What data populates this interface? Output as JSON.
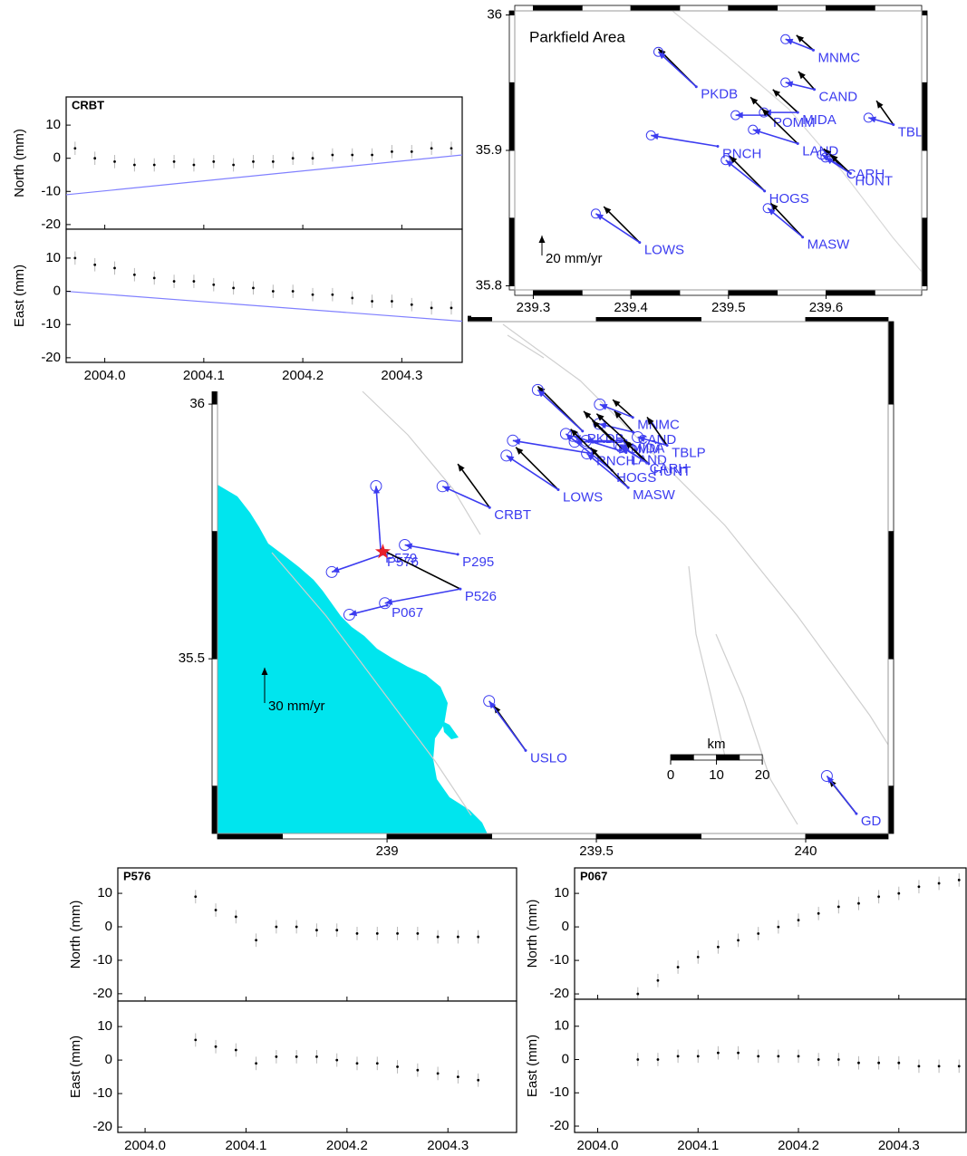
{
  "chart_data": [
    {
      "type": "map",
      "xlim": [
        238.595,
        240.197
      ],
      "ylim": [
        35.157,
        36.162
      ],
      "xticks": [
        239,
        239.5,
        240
      ],
      "yticks": [
        35.5,
        36
      ],
      "observed_color": "#000000",
      "model_color": "#3c3cf0",
      "stations": [
        {
          "name": "MNMC",
          "lon": 239.587,
          "lat": 35.974,
          "observed": [
            -17,
            15
          ],
          "model": [
            -28,
            11
          ]
        },
        {
          "name": "CAND",
          "lon": 239.588,
          "lat": 35.945,
          "observed": [
            -16,
            18
          ],
          "model": [
            -29,
            7
          ]
        },
        {
          "name": "PKDB",
          "lon": 239.467,
          "lat": 35.947,
          "observed": [
            -38,
            38
          ],
          "model": [
            -38,
            35
          ]
        },
        {
          "name": "POMM",
          "lon": 239.541,
          "lat": 35.926,
          "observed": [
            -18,
            18
          ],
          "model": [
            -33,
            0
          ]
        },
        {
          "name": "MIDA",
          "lon": 239.571,
          "lat": 35.928,
          "observed": [
            -25,
            23
          ],
          "model": [
            -34,
            0
          ]
        },
        {
          "name": "LAND",
          "lon": 239.571,
          "lat": 35.905,
          "observed": [
            -36,
            35
          ],
          "model": [
            -45,
            14
          ]
        },
        {
          "name": "RNCH",
          "lon": 239.489,
          "lat": 35.903,
          "model": [
            -67,
            11
          ]
        },
        {
          "name": "CARH",
          "lon": 239.616,
          "lat": 35.888,
          "observed": [
            -18,
            18
          ],
          "model": [
            -20,
            12
          ]
        },
        {
          "name": "HUNT",
          "lon": 239.625,
          "lat": 35.883,
          "observed": [
            -20,
            19
          ],
          "model": [
            -25,
            16
          ]
        },
        {
          "name": "HOGS",
          "lon": 239.537,
          "lat": 35.87,
          "observed": [
            -35,
            35
          ],
          "model": [
            -39,
            31
          ]
        },
        {
          "name": "MASW",
          "lon": 239.576,
          "lat": 35.836,
          "observed": [
            -32,
            34
          ],
          "model": [
            -35,
            29
          ]
        },
        {
          "name": "LOWS",
          "lon": 239.409,
          "lat": 35.832,
          "observed": [
            -36,
            36
          ],
          "model": [
            -44,
            29
          ]
        },
        {
          "name": "TBLP",
          "lon": 239.669,
          "lat": 35.919,
          "observed": [
            -17,
            24
          ],
          "model": [
            -25,
            7
          ]
        },
        {
          "name": "CRBT",
          "lon": 239.245,
          "lat": 35.797,
          "observed": [
            -27,
            37
          ],
          "model": [
            -40,
            18
          ]
        },
        {
          "name": "P295",
          "lon": 239.169,
          "lat": 35.705,
          "model": [
            -45,
            8
          ]
        },
        {
          "name": "P579",
          "lon": 238.985,
          "lat": 35.712,
          "model": [
            -4,
            55
          ]
        },
        {
          "name": "P576",
          "lon": 238.989,
          "lat": 35.705,
          "model": [
            -43,
            -15
          ]
        },
        {
          "name": "P526",
          "lon": 239.175,
          "lat": 35.637,
          "observed": [
            -68,
            34
          ],
          "model": [
            -64,
            -12
          ]
        },
        {
          "name": "P067",
          "lon": 239.0,
          "lat": 35.605,
          "model": [
            -32,
            -8
          ]
        },
        {
          "name": "USLO",
          "lon": 239.331,
          "lat": 35.32,
          "observed": [
            -27,
            38
          ],
          "model": [
            -31,
            42
          ]
        },
        {
          "name": "GD",
          "lon": 240.121,
          "lat": 35.196,
          "observed": [
            -23,
            29
          ],
          "model": [
            -25,
            32
          ]
        }
      ],
      "epicenter": {
        "lon": 238.99,
        "lat": 35.71,
        "color": "#e8202a"
      },
      "scale_arrow": {
        "value": 30,
        "label": "30 mm/yr"
      },
      "scale_bar": {
        "label": "km",
        "ticks": [
          0,
          10,
          20
        ]
      }
    },
    {
      "type": "map",
      "title": "Parkfield Area",
      "xlim": [
        239.281,
        239.698
      ],
      "ylim": [
        35.797,
        36.003
      ],
      "xticks": [
        239.3,
        239.4,
        239.5,
        239.6
      ],
      "yticks": [
        35.8,
        35.9,
        36
      ],
      "observed_color": "#000000",
      "model_color": "#3c3cf0",
      "stations": [
        {
          "name": "MNMC",
          "lon": 239.587,
          "lat": 35.974,
          "observed": [
            -17,
            15
          ],
          "model": [
            -28,
            11
          ]
        },
        {
          "name": "CAND",
          "lon": 239.588,
          "lat": 35.945,
          "observed": [
            -16,
            18
          ],
          "model": [
            -29,
            7
          ]
        },
        {
          "name": "PKDB",
          "lon": 239.467,
          "lat": 35.947,
          "observed": [
            -38,
            38
          ],
          "model": [
            -38,
            35
          ]
        },
        {
          "name": "POMM",
          "lon": 239.541,
          "lat": 35.926,
          "observed": [
            -18,
            18
          ],
          "model": [
            -33,
            0
          ]
        },
        {
          "name": "MIDA",
          "lon": 239.571,
          "lat": 35.928,
          "observed": [
            -25,
            23
          ],
          "model": [
            -34,
            0
          ]
        },
        {
          "name": "LAND",
          "lon": 239.571,
          "lat": 35.905,
          "observed": [
            -36,
            35
          ],
          "model": [
            -45,
            14
          ]
        },
        {
          "name": "RNCH",
          "lon": 239.489,
          "lat": 35.903,
          "model": [
            -67,
            11
          ]
        },
        {
          "name": "CARH",
          "lon": 239.616,
          "lat": 35.888,
          "observed": [
            -18,
            18
          ],
          "model": [
            -20,
            12
          ]
        },
        {
          "name": "HUNT",
          "lon": 239.625,
          "lat": 35.883,
          "observed": [
            -20,
            19
          ],
          "model": [
            -25,
            16
          ]
        },
        {
          "name": "HOGS",
          "lon": 239.537,
          "lat": 35.87,
          "observed": [
            -35,
            35
          ],
          "model": [
            -39,
            31
          ]
        },
        {
          "name": "MASW",
          "lon": 239.576,
          "lat": 35.836,
          "observed": [
            -32,
            34
          ],
          "model": [
            -35,
            29
          ]
        },
        {
          "name": "LOWS",
          "lon": 239.409,
          "lat": 35.832,
          "observed": [
            -36,
            36
          ],
          "model": [
            -44,
            29
          ]
        },
        {
          "name": "TBLP",
          "lon": 239.669,
          "lat": 35.919,
          "observed": [
            -17,
            24
          ],
          "model": [
            -25,
            7
          ]
        }
      ],
      "scale_arrow": {
        "value": 20,
        "label": "20 mm/yr"
      }
    },
    {
      "type": "timeseries",
      "title": "CRBT",
      "x": [
        2003.97,
        2003.99,
        2004.01,
        2004.03,
        2004.05,
        2004.07,
        2004.09,
        2004.11,
        2004.13,
        2004.15,
        2004.17,
        2004.19,
        2004.21,
        2004.23,
        2004.25,
        2004.27,
        2004.29,
        2004.31,
        2004.33,
        2004.35
      ],
      "xlim": [
        2003.961,
        2004.361
      ],
      "xticks": [
        {
          "value": 2004,
          "label": "2004.0"
        },
        2004.1,
        2004.2,
        2004.3
      ],
      "yerr": 2,
      "point_color": "#000000",
      "errorbar_color": "#b8b8b8",
      "model_color": "#8080ff",
      "panels": [
        {
          "ylabel": "North (mm)",
          "ylim": [
            -21.4,
            18.5
          ],
          "yticks": [
            -20,
            -10,
            0,
            10
          ],
          "values": [
            3,
            0,
            -1,
            -2,
            -2,
            -1,
            -2,
            -1,
            -2,
            -1,
            -1,
            0,
            0,
            1,
            1,
            1,
            2,
            2,
            3,
            3
          ],
          "model": {
            "x": [
              2003.961,
              2004.361
            ],
            "values": [
              -11,
              1
            ]
          }
        },
        {
          "ylabel": "East (mm)",
          "ylim": [
            -21.4,
            18.7
          ],
          "yticks": [
            -20,
            -10,
            0,
            10
          ],
          "values": [
            10,
            8,
            7,
            5,
            4,
            3,
            3,
            2,
            1,
            1,
            0,
            0,
            -1,
            -1,
            -2,
            -3,
            -3,
            -4,
            -5,
            -5
          ],
          "model": {
            "x": [
              2003.961,
              2004.361
            ],
            "values": [
              0,
              -9
            ]
          }
        }
      ]
    },
    {
      "type": "timeseries",
      "title": "P576",
      "x": [
        2004.05,
        2004.07,
        2004.09,
        2004.11,
        2004.13,
        2004.15,
        2004.17,
        2004.19,
        2004.21,
        2004.23,
        2004.25,
        2004.27,
        2004.29,
        2004.31,
        2004.33
      ],
      "xlim": [
        2003.973,
        2004.368
      ],
      "xticks": [
        {
          "value": 2004,
          "label": "2004.0"
        },
        2004.1,
        2004.2,
        2004.3
      ],
      "yerr": 2,
      "point_color": "#000000",
      "errorbar_color": "#b8b8b8",
      "panels": [
        {
          "ylabel": "North (mm)",
          "ylim": [
            -22.2,
            17.6
          ],
          "yticks": [
            -20,
            -10,
            0,
            10
          ],
          "values": [
            9,
            5,
            3,
            -4,
            0,
            0,
            -1,
            -1,
            -2,
            -2,
            -2,
            -2,
            -3,
            -3,
            -3
          ]
        },
        {
          "ylabel": "East (mm)",
          "ylim": [
            -21.6,
            17.6
          ],
          "yticks": [
            -20,
            -10,
            0,
            10
          ],
          "values": [
            6,
            4,
            3,
            -1,
            1,
            1,
            1,
            0,
            -1,
            -1,
            -2,
            -3,
            -4,
            -5,
            -6
          ]
        }
      ]
    },
    {
      "type": "timeseries",
      "title": "P067",
      "x": [
        2004.04,
        2004.06,
        2004.08,
        2004.1,
        2004.12,
        2004.14,
        2004.16,
        2004.18,
        2004.2,
        2004.22,
        2004.24,
        2004.26,
        2004.28,
        2004.3,
        2004.32,
        2004.34,
        2004.36
      ],
      "xlim": [
        2003.977,
        2004.367
      ],
      "xticks": [
        {
          "value": 2004,
          "label": "2004.0"
        },
        2004.1,
        2004.2,
        2004.3
      ],
      "yerr": 2,
      "point_color": "#000000",
      "errorbar_color": "#b8b8b8",
      "panels": [
        {
          "ylabel": "North (mm)",
          "ylim": [
            -21.6,
            17.6
          ],
          "yticks": [
            -20,
            -10,
            0,
            10
          ],
          "values": [
            -20,
            -16,
            -12,
            -9,
            -6,
            -4,
            -2,
            0,
            2,
            4,
            6,
            7,
            9,
            10,
            12,
            13,
            14
          ]
        },
        {
          "ylabel": "East (mm)",
          "ylim": [
            -21.9,
            18.1
          ],
          "yticks": [
            -20,
            -10,
            0,
            10
          ],
          "values": [
            0,
            0,
            1,
            1,
            2,
            2,
            1,
            1,
            1,
            0,
            0,
            -1,
            -1,
            -1,
            -2,
            -2,
            -2
          ]
        }
      ]
    }
  ]
}
